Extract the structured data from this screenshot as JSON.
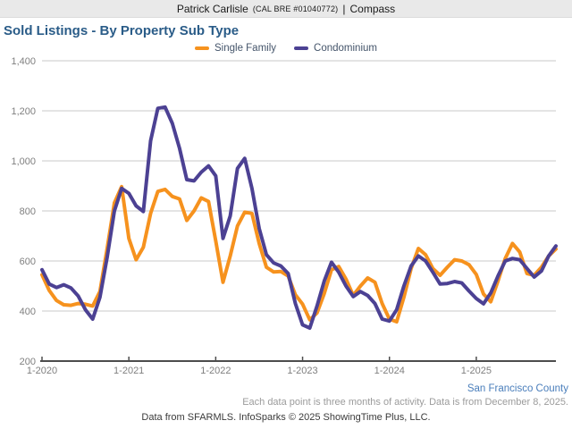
{
  "header": {
    "agent": "Patrick Carlisle",
    "license": "(CAL BRE #01040772)",
    "separator": "|",
    "brand": "Compass"
  },
  "title": "Sold Listings - By Property Sub Type",
  "legend": [
    {
      "label": "Single Family",
      "color": "#f6921e"
    },
    {
      "label": "Condominium",
      "color": "#4c4193"
    }
  ],
  "footer": {
    "region": "San Francisco County",
    "note": "Each data point is three months of activity. Data is from December 8, 2025.",
    "attribution": "Data from SFARMLS. InfoSparks © 2025 ShowingTime Plus, LLC."
  },
  "chart_data": {
    "type": "line",
    "title": "Sold Listings - By Property Sub Type",
    "xlabel": "",
    "ylabel": "",
    "ylim": [
      200,
      1400
    ],
    "grid": "horizontal",
    "legend_position": "top",
    "y_tick_labels": [
      "200",
      "400",
      "600",
      "800",
      "1,000",
      "1,200",
      "1,400"
    ],
    "y_tick_values": [
      200,
      400,
      600,
      800,
      1000,
      1200,
      1400
    ],
    "x_tick_labels": [
      "1-2020",
      "1-2021",
      "1-2022",
      "1-2023",
      "1-2024",
      "1-2025"
    ],
    "x_tick_indices": [
      0,
      12,
      24,
      36,
      48,
      60
    ],
    "x": [
      "1-2020",
      "2-2020",
      "3-2020",
      "4-2020",
      "5-2020",
      "6-2020",
      "7-2020",
      "8-2020",
      "9-2020",
      "10-2020",
      "11-2020",
      "12-2020",
      "1-2021",
      "2-2021",
      "3-2021",
      "4-2021",
      "5-2021",
      "6-2021",
      "7-2021",
      "8-2021",
      "9-2021",
      "10-2021",
      "11-2021",
      "12-2021",
      "1-2022",
      "2-2022",
      "3-2022",
      "4-2022",
      "5-2022",
      "6-2022",
      "7-2022",
      "8-2022",
      "9-2022",
      "10-2022",
      "11-2022",
      "12-2022",
      "1-2023",
      "2-2023",
      "3-2023",
      "4-2023",
      "5-2023",
      "6-2023",
      "7-2023",
      "8-2023",
      "9-2023",
      "10-2023",
      "11-2023",
      "12-2023",
      "1-2024",
      "2-2024",
      "3-2024",
      "4-2024",
      "5-2024",
      "6-2024",
      "7-2024",
      "8-2024",
      "9-2024",
      "10-2024",
      "11-2024",
      "12-2024",
      "1-2025",
      "2-2025",
      "3-2025",
      "4-2025",
      "5-2025",
      "6-2025",
      "7-2025",
      "8-2025",
      "9-2025",
      "10-2025",
      "11-2025",
      "12-2025"
    ],
    "series": [
      {
        "name": "Single Family",
        "color": "#f6921e",
        "values": [
          545,
          482,
          442,
          425,
          423,
          430,
          427,
          420,
          478,
          650,
          832,
          897,
          690,
          605,
          655,
          790,
          878,
          886,
          858,
          848,
          762,
          800,
          852,
          838,
          680,
          515,
          620,
          740,
          795,
          790,
          670,
          575,
          556,
          558,
          540,
          465,
          428,
          365,
          392,
          470,
          565,
          578,
          528,
          462,
          500,
          532,
          515,
          430,
          368,
          357,
          455,
          570,
          650,
          625,
          570,
          543,
          575,
          605,
          600,
          585,
          546,
          468,
          437,
          520,
          610,
          670,
          636,
          550,
          543,
          575,
          620,
          648
        ]
      },
      {
        "name": "Condominium",
        "color": "#4c4193",
        "values": [
          565,
          508,
          494,
          505,
          492,
          460,
          405,
          368,
          455,
          615,
          800,
          890,
          870,
          820,
          798,
          1080,
          1210,
          1215,
          1150,
          1050,
          925,
          920,
          955,
          980,
          940,
          690,
          780,
          970,
          1010,
          890,
          730,
          625,
          592,
          580,
          550,
          430,
          345,
          332,
          420,
          520,
          595,
          555,
          500,
          458,
          478,
          462,
          430,
          368,
          360,
          405,
          500,
          580,
          620,
          600,
          555,
          508,
          510,
          518,
          512,
          480,
          450,
          429,
          472,
          540,
          600,
          610,
          605,
          570,
          536,
          560,
          620,
          660
        ]
      }
    ]
  }
}
